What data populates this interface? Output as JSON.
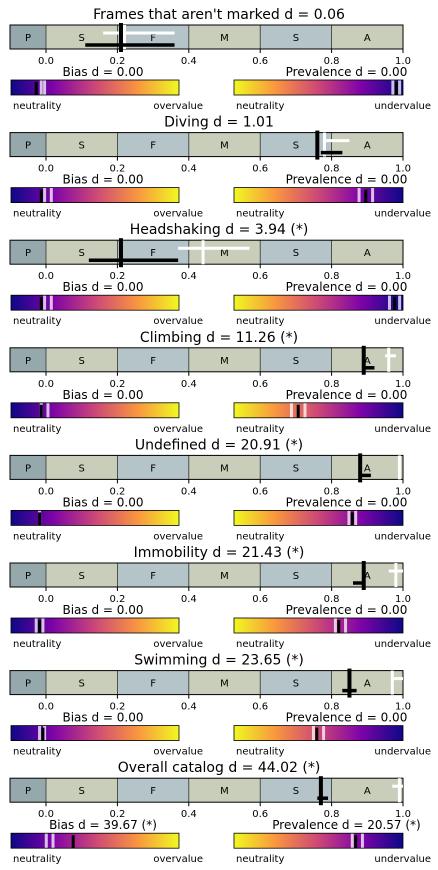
{
  "chart_data": {
    "type": "other",
    "axis_ticks": [
      "0.0",
      "0.2",
      "0.4",
      "0.6",
      "0.8",
      "1.0"
    ],
    "gradient_ticks": {
      "bias_left": "neutrality",
      "bias_right": "overvalue",
      "prev_left": "neutrality",
      "prev_right": "undervalue"
    },
    "colors": {
      "band_light": "#c8ceb9",
      "band_blue": "#b4c4c8",
      "band_p": "#95a9ac"
    },
    "bands": [
      {
        "label": "P",
        "from": -0.1,
        "to": 0.0
      },
      {
        "label": "S",
        "from": 0.0,
        "to": 0.2
      },
      {
        "label": "F",
        "from": 0.2,
        "to": 0.4
      },
      {
        "label": "M",
        "from": 0.4,
        "to": 0.6
      },
      {
        "label": "S",
        "from": 0.6,
        "to": 0.8
      },
      {
        "label": "A",
        "from": 0.8,
        "to": 1.0
      }
    ],
    "panels": [
      {
        "title": "Frames that aren't marked d = 0.06",
        "bias_label": "Bias d = 0.00",
        "prev_label": "Prevalence d = 0.00",
        "black": {
          "x": 0.21,
          "lo": 0.11,
          "hi": 0.36
        },
        "white": [
          {
            "x": 0.22,
            "lo": 0.16,
            "hi": 0.36
          }
        ],
        "bias": {
          "black": 0.15,
          "white": [
            0.18,
            0.2
          ]
        },
        "prev": {
          "black": 0.96,
          "white": [
            0.94,
            0.98
          ]
        }
      },
      {
        "title": "Diving d = 1.01",
        "bias_label": "Bias d = 0.00",
        "prev_label": "Prevalence d = 0.00",
        "black": {
          "x": 0.76,
          "lo": 0.77,
          "hi": 0.83
        },
        "white": [
          {
            "x": 0.78,
            "lo": 0.78,
            "hi": 0.85
          }
        ],
        "bias": {
          "black": 0.18,
          "white": [
            0.2,
            0.24
          ]
        },
        "prev": {
          "black": 0.78,
          "white": [
            0.74,
            0.82
          ]
        }
      },
      {
        "title": "Headshaking d = 3.94 (*)",
        "bias_label": "Bias d = 0.00",
        "prev_label": "Prevalence d = 0.00",
        "black": {
          "x": 0.21,
          "lo": 0.12,
          "hi": 0.37
        },
        "white": [
          {
            "x": 0.44,
            "lo": 0.37,
            "hi": 0.57
          }
        ],
        "bias": {
          "black": 0.18,
          "white": [
            0.2,
            0.24
          ]
        },
        "prev": {
          "black": 0.95,
          "white": [
            0.92,
            0.98
          ]
        }
      },
      {
        "title": "Climbing d = 11.26 (*)",
        "bias_label": "Bias d = 0.00",
        "prev_label": "Prevalence d = 0.00",
        "black": {
          "x": 0.89,
          "lo": 0.89,
          "hi": 0.92
        },
        "white": [
          {
            "x": 0.96,
            "lo": 0.95,
            "hi": 0.98
          }
        ],
        "bias": {
          "black": 0.18,
          "white": [
            0.18,
            0.22
          ]
        },
        "prev": {
          "black": 0.38,
          "white": [
            0.34,
            0.42
          ]
        }
      },
      {
        "title": "Undefined d = 20.91 (*)",
        "bias_label": "Bias d = 0.00",
        "prev_label": "Prevalence d = 0.00",
        "black": {
          "x": 0.88,
          "lo": 0.88,
          "hi": 0.91
        },
        "white": [
          {
            "x": 0.99,
            "lo": 0.99,
            "hi": 0.99
          }
        ],
        "bias": {
          "black": 0.17,
          "white": [
            0.17
          ]
        },
        "prev": {
          "black": 0.7,
          "white": [
            0.68,
            0.72
          ]
        }
      },
      {
        "title": "Immobility d = 21.43 (*)",
        "bias_label": "Bias d = 0.00",
        "prev_label": "Prevalence d = 0.00",
        "black": {
          "x": 0.89,
          "lo": 0.86,
          "hi": 0.89
        },
        "white": [
          {
            "x": 0.98,
            "lo": 0.96,
            "hi": 1.0
          }
        ],
        "bias": {
          "black": 0.17,
          "white": [
            0.15,
            0.19
          ]
        },
        "prev": {
          "black": 0.62,
          "white": [
            0.6,
            0.66
          ]
        }
      },
      {
        "title": "Swimming d = 23.65 (*)",
        "bias_label": "Bias d = 0.00",
        "prev_label": "Prevalence d = 0.00",
        "black": {
          "x": 0.85,
          "lo": 0.83,
          "hi": 0.87
        },
        "white": [
          {
            "x": 0.97,
            "lo": 0.97,
            "hi": 1.0
          }
        ],
        "bias": {
          "black": 0.19,
          "white": [
            0.17,
            0.2
          ]
        },
        "prev": {
          "black": 0.49,
          "white": [
            0.47,
            0.53
          ]
        }
      },
      {
        "title": "Overall catalog d = 44.02 (*)",
        "bias_label": "Bias d = 39.67 (*)",
        "prev_label": "Prevalence d = 20.57 (*)",
        "black": {
          "x": 0.77,
          "lo": 0.76,
          "hi": 0.79
        },
        "white": [
          {
            "x": 0.99,
            "lo": 0.97,
            "hi": 1.0
          }
        ],
        "bias": {
          "black": 0.37,
          "white": [
            0.21,
            0.25
          ]
        },
        "prev": {
          "black": 0.72,
          "white": [
            0.7,
            0.76
          ]
        }
      }
    ]
  }
}
